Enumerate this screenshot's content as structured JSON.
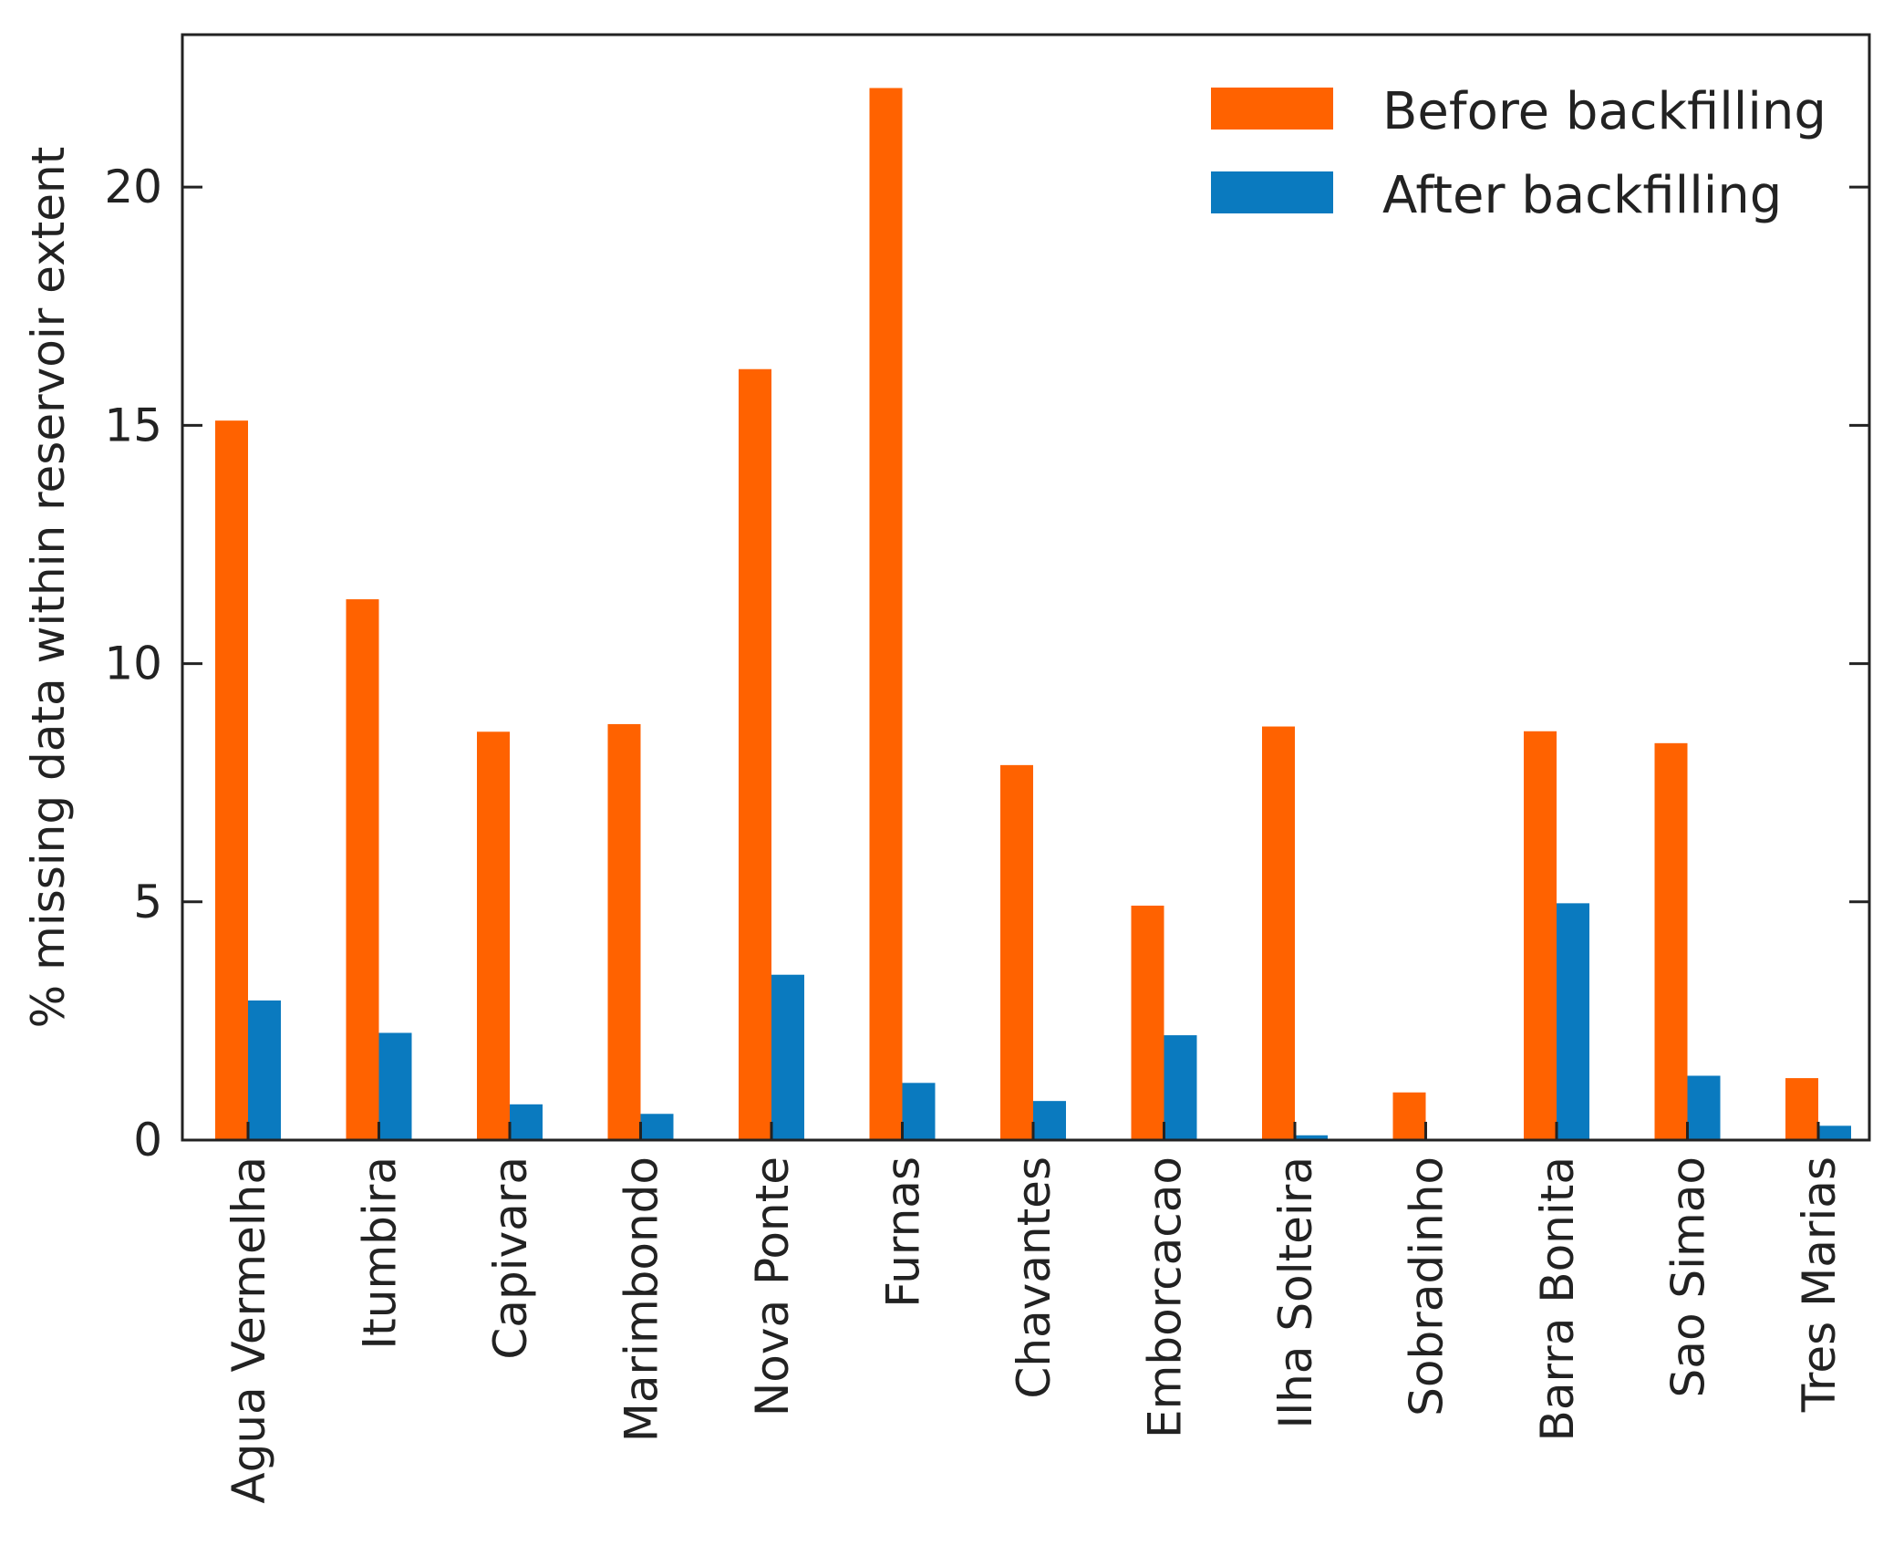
{
  "chart_data": {
    "type": "bar",
    "title": "",
    "xlabel": "",
    "ylabel": "% missing data within reservoir extent",
    "ylim": [
      0,
      23.2
    ],
    "yticks": [
      0,
      5,
      10,
      15,
      20
    ],
    "grid": false,
    "legend_position": "top-right",
    "categories": [
      "Agua Vermelha",
      "Itumbira",
      "Capivara",
      "Marimbondo",
      "Nova Ponte",
      "Furnas",
      "Chavantes",
      "Emborcacao",
      "Ilha Solteira",
      "Sobradinho",
      "Barra Bonita",
      "Sao Simao",
      "Tres Marias"
    ],
    "series": [
      {
        "name": "Before backfilling",
        "color": "#ff6200",
        "values": [
          15.1,
          11.35,
          8.57,
          8.73,
          16.18,
          22.08,
          7.87,
          4.92,
          8.68,
          1.0,
          8.58,
          8.33,
          1.3
        ]
      },
      {
        "name": "After backfilling",
        "color": "#0a7abf",
        "values": [
          2.93,
          2.25,
          0.75,
          0.55,
          3.47,
          1.2,
          0.82,
          2.2,
          0.1,
          0.0,
          4.97,
          1.35,
          0.3
        ]
      }
    ]
  }
}
